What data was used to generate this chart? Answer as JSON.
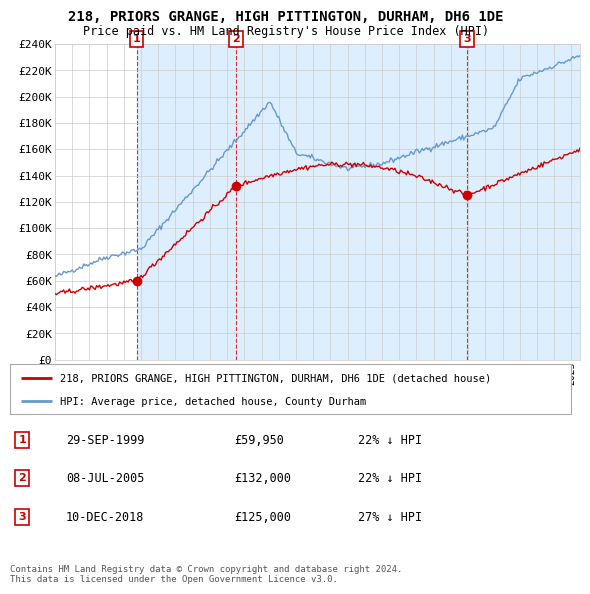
{
  "title": "218, PRIORS GRANGE, HIGH PITTINGTON, DURHAM, DH6 1DE",
  "subtitle": "Price paid vs. HM Land Registry's House Price Index (HPI)",
  "ylabel_ticks": [
    "£0",
    "£20K",
    "£40K",
    "£60K",
    "£80K",
    "£100K",
    "£120K",
    "£140K",
    "£160K",
    "£180K",
    "£200K",
    "£220K",
    "£240K"
  ],
  "ylim": [
    0,
    240000
  ],
  "ytick_vals": [
    0,
    20000,
    40000,
    60000,
    80000,
    100000,
    120000,
    140000,
    160000,
    180000,
    200000,
    220000,
    240000
  ],
  "xlim_start": 1995.0,
  "xlim_end": 2025.5,
  "transactions": [
    {
      "num": 1,
      "date_label": "29-SEP-1999",
      "price": 59950,
      "year": 1999.75,
      "pct": "22%",
      "dir": "↓"
    },
    {
      "num": 2,
      "date_label": "08-JUL-2005",
      "price": 132000,
      "year": 2005.52,
      "pct": "22%",
      "dir": "↓"
    },
    {
      "num": 3,
      "date_label": "10-DEC-2018",
      "price": 125000,
      "year": 2018.94,
      "pct": "27%",
      "dir": "↓"
    }
  ],
  "legend_house_label": "218, PRIORS GRANGE, HIGH PITTINGTON, DURHAM, DH6 1DE (detached house)",
  "legend_hpi_label": "HPI: Average price, detached house, County Durham",
  "footnote1": "Contains HM Land Registry data © Crown copyright and database right 2024.",
  "footnote2": "This data is licensed under the Open Government Licence v3.0.",
  "house_color": "#cc0000",
  "hpi_color": "#6699cc",
  "shade_color": "#ddeeff",
  "background_color": "#ffffff",
  "grid_color": "#cccccc"
}
